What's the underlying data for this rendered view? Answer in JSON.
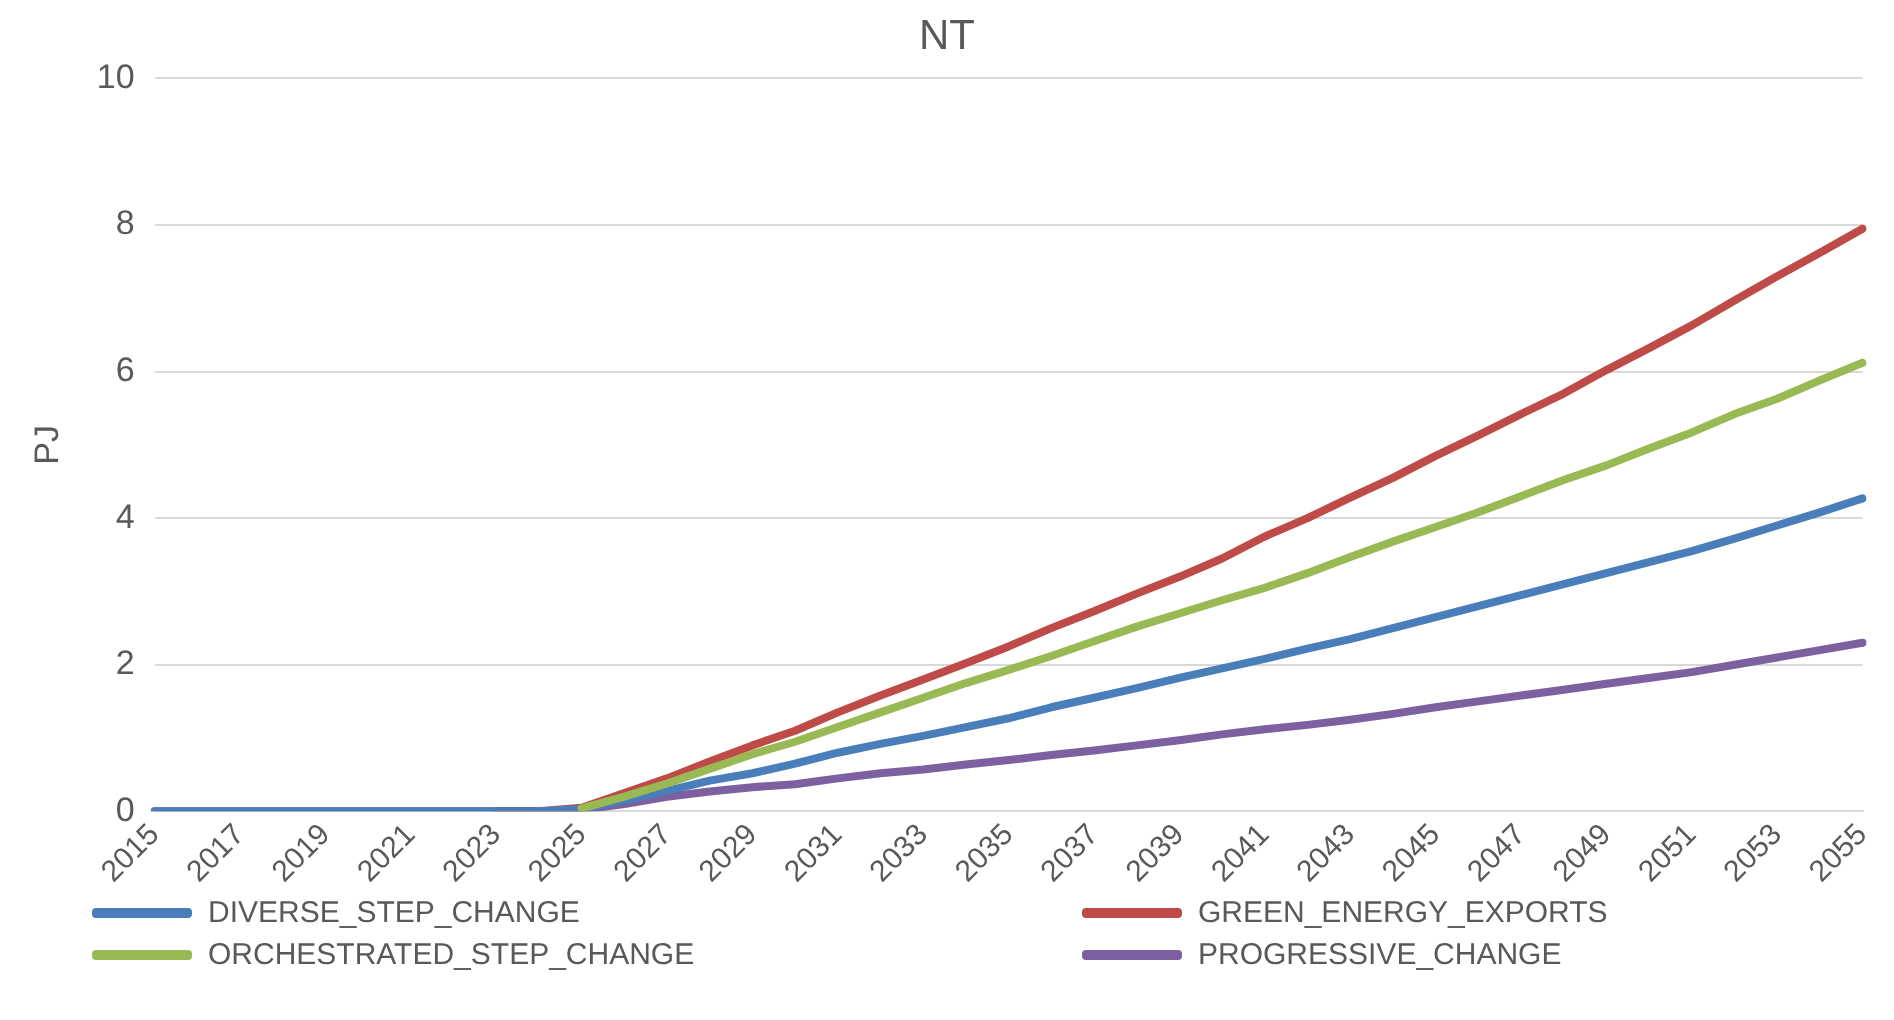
{
  "chart_data": {
    "type": "line",
    "title": "NT",
    "ylabel": "PJ",
    "categories": [
      "2015",
      null,
      "2017",
      null,
      "2019",
      null,
      "2021",
      null,
      "2023",
      null,
      "2025",
      null,
      "2027",
      null,
      "2029",
      null,
      "2031",
      null,
      "2033",
      null,
      "2035",
      null,
      "2037",
      null,
      "2039",
      null,
      "2041",
      null,
      "2043",
      null,
      "2045",
      null,
      "2047",
      null,
      "2049",
      null,
      "2051",
      null,
      "2053",
      null,
      "2055"
    ],
    "series": [
      {
        "name": "DIVERSE_STEP_CHANGE",
        "color": "#4a7ebb",
        "values": [
          0,
          0,
          0,
          0,
          0,
          0,
          0,
          0,
          0,
          0,
          0.03,
          0.15,
          0.28,
          0.42,
          0.52,
          0.65,
          0.8,
          0.92,
          1.03,
          1.15,
          1.27,
          1.42,
          1.55,
          1.68,
          1.82,
          1.95,
          2.08,
          2.22,
          2.35,
          2.5,
          2.65,
          2.8,
          2.95,
          3.1,
          3.25,
          3.4,
          3.55,
          3.72,
          3.9,
          4.08,
          4.27
        ]
      },
      {
        "name": "GREEN_ENERGY_EXPORTS",
        "color": "#be4b48",
        "values": [
          null,
          null,
          null,
          null,
          null,
          null,
          null,
          null,
          0,
          0,
          0.05,
          0.25,
          0.45,
          0.68,
          0.9,
          1.1,
          1.35,
          1.58,
          1.8,
          2.02,
          2.25,
          2.5,
          2.73,
          2.97,
          3.2,
          3.45,
          3.75,
          4.0,
          4.28,
          4.55,
          4.85,
          5.13,
          5.42,
          5.7,
          6.02,
          6.32,
          6.63,
          6.97,
          7.3,
          7.62,
          7.95
        ]
      },
      {
        "name": "ORCHESTRATED_STEP_CHANGE",
        "color": "#98b954",
        "values": [
          null,
          null,
          null,
          null,
          null,
          null,
          null,
          null,
          null,
          null,
          0.04,
          0.2,
          0.38,
          0.58,
          0.78,
          0.95,
          1.15,
          1.35,
          1.55,
          1.75,
          1.93,
          2.12,
          2.32,
          2.52,
          2.7,
          2.88,
          3.05,
          3.25,
          3.47,
          3.68,
          3.88,
          4.08,
          4.3,
          4.52,
          4.72,
          4.95,
          5.17,
          5.42,
          5.63,
          5.88,
          6.12
        ]
      },
      {
        "name": "PROGRESSIVE_CHANGE",
        "color": "#7d60a0",
        "values": [
          0,
          0,
          0,
          0,
          0,
          0,
          0,
          0,
          0,
          0,
          0.02,
          0.1,
          0.2,
          0.27,
          0.33,
          0.37,
          0.45,
          0.52,
          0.57,
          0.64,
          0.7,
          0.77,
          0.83,
          0.9,
          0.97,
          1.05,
          1.12,
          1.18,
          1.25,
          1.33,
          1.42,
          1.5,
          1.58,
          1.66,
          1.74,
          1.82,
          1.9,
          2.0,
          2.1,
          2.2,
          2.3
        ]
      }
    ],
    "ylim": [
      0,
      10
    ],
    "yticks": [
      0,
      2,
      4,
      6,
      8,
      10
    ],
    "grid": "y",
    "legend": "bottom",
    "marker": "none",
    "line_style": "solid"
  }
}
